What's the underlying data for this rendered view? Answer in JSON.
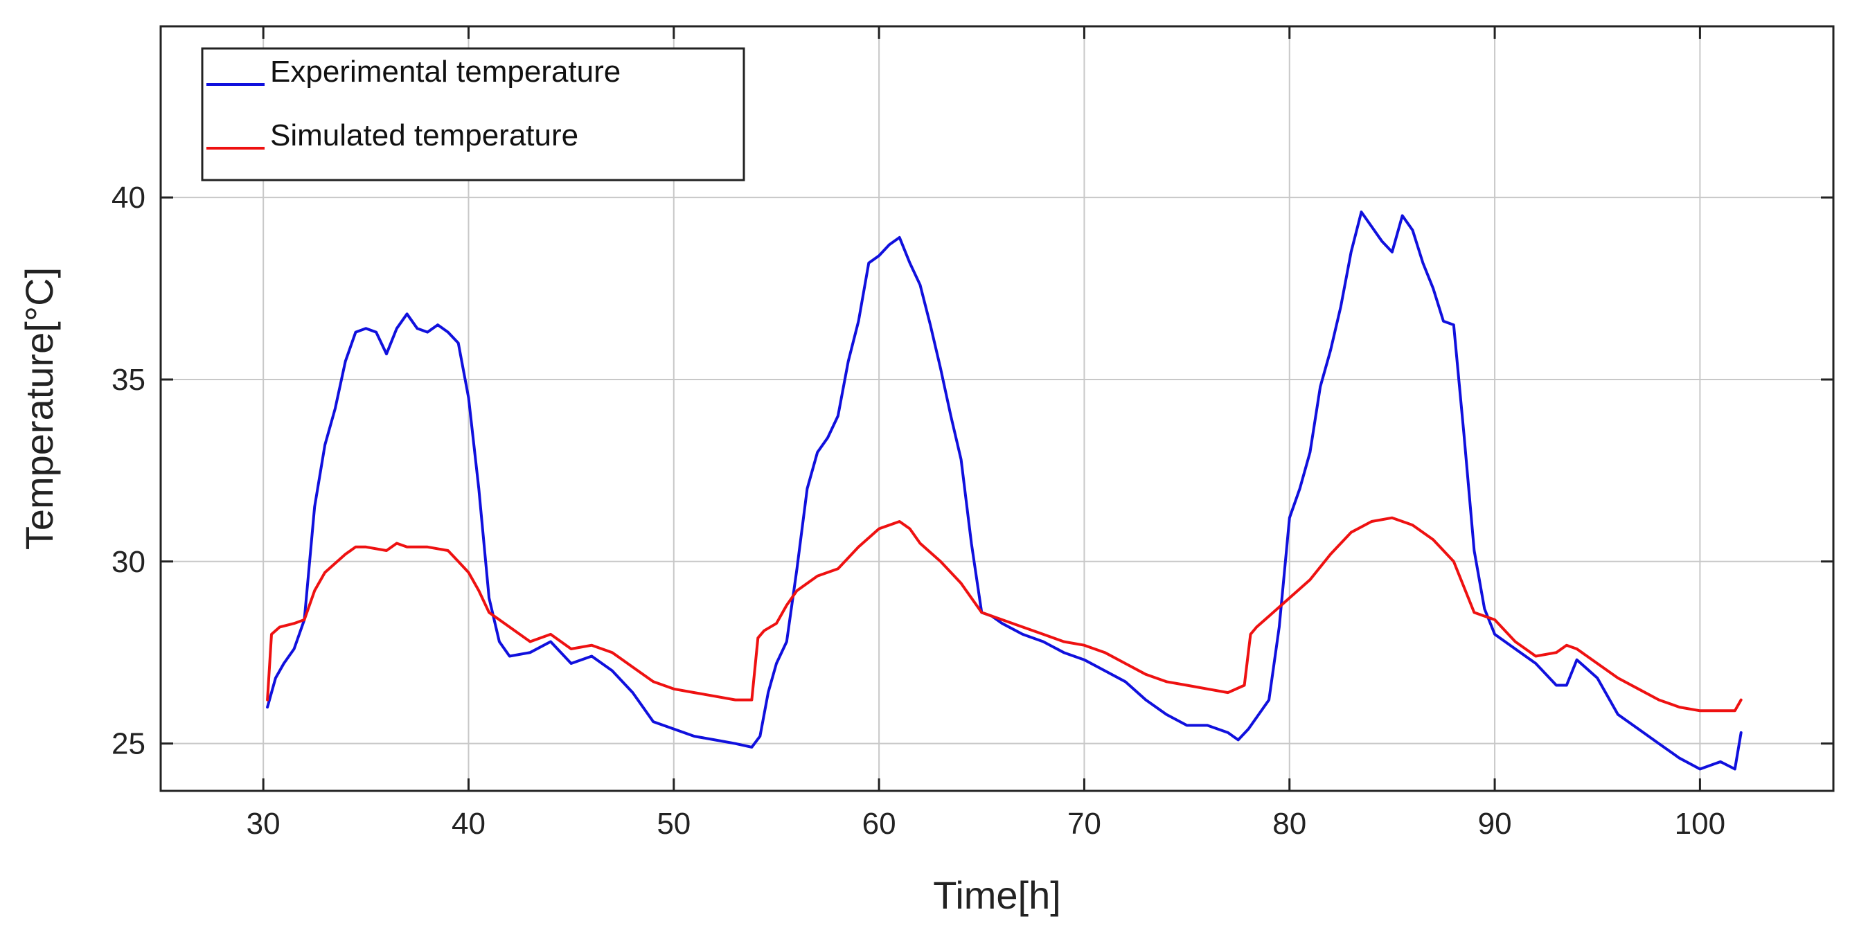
{
  "chart_data": {
    "type": "line",
    "title": "",
    "xlabel": "Time[h]",
    "ylabel": "Temperature[°C]",
    "xlim": [
      25,
      106.5
    ],
    "ylim": [
      23.7,
      44.7
    ],
    "xticks": [
      30,
      40,
      50,
      60,
      70,
      80,
      90,
      100
    ],
    "yticks": [
      25,
      30,
      35,
      40
    ],
    "grid": true,
    "legend_position": "top-left",
    "series": [
      {
        "name": "Experimental temperature",
        "color": "#1010dd",
        "x": [
          30.2,
          30.6,
          31.0,
          31.5,
          32.0,
          32.5,
          33.0,
          33.5,
          34.0,
          34.5,
          35.0,
          35.5,
          36.0,
          36.5,
          37.0,
          37.5,
          38.0,
          38.5,
          39.0,
          39.5,
          40.0,
          40.5,
          41.0,
          41.5,
          42.0,
          43.0,
          44.0,
          45.0,
          46.0,
          47.0,
          48.0,
          49.0,
          50.0,
          51.0,
          52.0,
          53.0,
          53.8,
          54.2,
          54.6,
          55.0,
          55.5,
          56.0,
          56.5,
          57.0,
          57.5,
          58.0,
          58.5,
          59.0,
          59.5,
          60.0,
          60.5,
          61.0,
          61.5,
          62.0,
          62.5,
          63.0,
          63.5,
          64.0,
          64.5,
          65.0,
          65.5,
          66.0,
          67.0,
          68.0,
          69.0,
          70.0,
          71.0,
          72.0,
          73.0,
          74.0,
          75.0,
          76.0,
          77.0,
          77.5,
          78.0,
          78.5,
          79.0,
          79.5,
          80.0,
          80.5,
          81.0,
          81.5,
          82.0,
          82.5,
          83.0,
          83.5,
          84.0,
          84.5,
          85.0,
          85.5,
          86.0,
          86.5,
          87.0,
          87.5,
          88.0,
          88.5,
          89.0,
          89.5,
          90.0,
          91.0,
          92.0,
          93.0,
          93.5,
          94.0,
          95.0,
          96.0,
          97.0,
          98.0,
          99.0,
          100.0,
          101.0,
          101.7,
          102.0
        ],
        "y": [
          26.0,
          26.8,
          27.2,
          27.6,
          28.4,
          31.5,
          33.2,
          34.2,
          35.5,
          36.3,
          36.4,
          36.3,
          35.7,
          36.4,
          36.8,
          36.4,
          36.3,
          36.5,
          36.3,
          36.0,
          34.5,
          32.0,
          29.0,
          27.8,
          27.4,
          27.5,
          27.8,
          27.2,
          27.4,
          27.0,
          26.4,
          25.6,
          25.4,
          25.2,
          25.1,
          25.0,
          24.9,
          25.2,
          26.4,
          27.2,
          27.8,
          29.8,
          32.0,
          33.0,
          33.4,
          34.0,
          35.5,
          36.6,
          38.2,
          38.4,
          38.7,
          38.9,
          38.2,
          37.6,
          36.5,
          35.3,
          34.0,
          32.8,
          30.5,
          28.6,
          28.5,
          28.3,
          28.0,
          27.8,
          27.5,
          27.3,
          27.0,
          26.7,
          26.2,
          25.8,
          25.5,
          25.5,
          25.3,
          25.1,
          25.4,
          25.8,
          26.2,
          28.2,
          31.2,
          32.0,
          33.0,
          34.8,
          35.8,
          37.0,
          38.5,
          39.6,
          39.2,
          38.8,
          38.5,
          39.5,
          39.1,
          38.2,
          37.5,
          36.6,
          36.5,
          33.5,
          30.3,
          28.7,
          28.0,
          27.6,
          27.2,
          26.6,
          26.6,
          27.3,
          26.8,
          25.8,
          25.4,
          25.0,
          24.6,
          24.3,
          24.5,
          24.3,
          25.3
        ]
      },
      {
        "name": "Simulated temperature",
        "color": "#ee1111",
        "x": [
          30.2,
          30.4,
          30.8,
          31.5,
          32.0,
          32.5,
          33.0,
          34.0,
          34.5,
          35.0,
          36.0,
          36.5,
          37.0,
          38.0,
          39.0,
          39.5,
          40.0,
          40.5,
          41.0,
          41.5,
          42.0,
          43.0,
          44.0,
          45.0,
          46.0,
          47.0,
          48.0,
          49.0,
          50.0,
          51.0,
          52.0,
          53.0,
          53.8,
          54.1,
          54.4,
          55.0,
          55.5,
          56.0,
          57.0,
          58.0,
          59.0,
          60.0,
          61.0,
          61.5,
          62.0,
          63.0,
          64.0,
          65.0,
          66.0,
          67.0,
          68.0,
          69.0,
          70.0,
          71.0,
          72.0,
          73.0,
          74.0,
          75.0,
          76.0,
          77.0,
          77.8,
          78.1,
          78.4,
          79.0,
          80.0,
          81.0,
          82.0,
          83.0,
          84.0,
          85.0,
          86.0,
          87.0,
          88.0,
          89.0,
          90.0,
          91.0,
          92.0,
          93.0,
          93.5,
          94.0,
          95.0,
          96.0,
          97.0,
          98.0,
          99.0,
          100.0,
          101.0,
          101.7,
          102.0
        ],
        "y": [
          26.2,
          28.0,
          28.2,
          28.3,
          28.4,
          29.2,
          29.7,
          30.2,
          30.4,
          30.4,
          30.3,
          30.5,
          30.4,
          30.4,
          30.3,
          30.0,
          29.7,
          29.2,
          28.6,
          28.4,
          28.2,
          27.8,
          28.0,
          27.6,
          27.7,
          27.5,
          27.1,
          26.7,
          26.5,
          26.4,
          26.3,
          26.2,
          26.2,
          27.9,
          28.1,
          28.3,
          28.8,
          29.2,
          29.6,
          29.8,
          30.4,
          30.9,
          31.1,
          30.9,
          30.5,
          30.0,
          29.4,
          28.6,
          28.4,
          28.2,
          28.0,
          27.8,
          27.7,
          27.5,
          27.2,
          26.9,
          26.7,
          26.6,
          26.5,
          26.4,
          26.6,
          28.0,
          28.2,
          28.5,
          29.0,
          29.5,
          30.2,
          30.8,
          31.1,
          31.2,
          31.0,
          30.6,
          30.0,
          28.6,
          28.4,
          27.8,
          27.4,
          27.5,
          27.7,
          27.6,
          27.2,
          26.8,
          26.5,
          26.2,
          26.0,
          25.9,
          25.9,
          25.9,
          26.2
        ]
      }
    ]
  }
}
